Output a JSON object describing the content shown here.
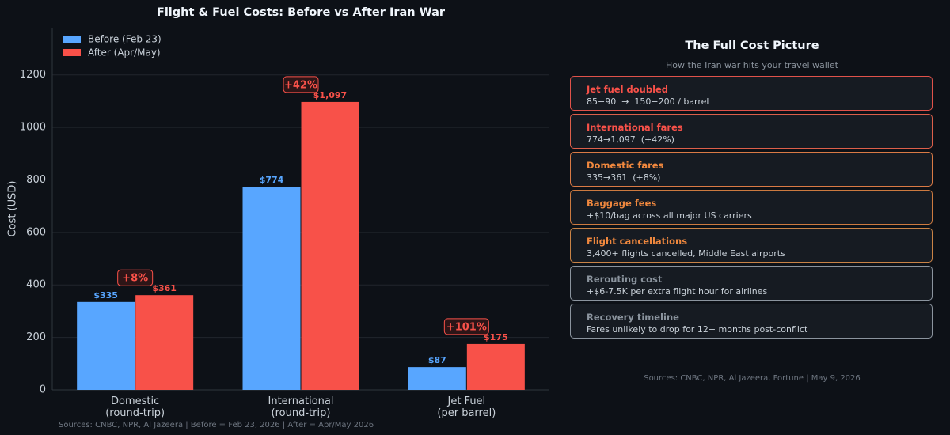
{
  "chart_data": {
    "type": "bar",
    "title": "Flight & Fuel Costs: Before vs After Iran War",
    "y_label": "Cost (USD)",
    "categories": [
      "Domestic\n(round-trip)",
      "International\n(round-trip)",
      "Jet Fuel\n(per barrel)"
    ],
    "series": [
      {
        "name": "Before (Feb 23)",
        "color": "#58a6ff",
        "values": [
          335,
          774,
          87
        ],
        "value_labels": [
          "$335",
          "$774",
          "$87"
        ]
      },
      {
        "name": "After (Apr/May)",
        "color": "#f85149",
        "values": [
          361,
          1097,
          175
        ],
        "value_labels": [
          "$361",
          "$1,097",
          "$175"
        ]
      }
    ],
    "annotations": [
      "+8%",
      "+42%",
      "+101%"
    ],
    "ylim": [
      0,
      1380
    ],
    "yticks": [
      0,
      200,
      400,
      600,
      800,
      1000,
      1200
    ],
    "grid": true,
    "legend": "upper left",
    "source": "Sources: CNBC, NPR, Al Jazeera  |  Before = Feb 23, 2026  |  After = Apr/May 2026"
  },
  "panel": {
    "title": "The Full Cost Picture",
    "subtitle": "How the Iran war hits your travel wallet",
    "cards": [
      {
        "title": "Jet fuel doubled",
        "detail": "85−90  →  150−200 / barrel",
        "color": "#f85149",
        "border": "#e0524a"
      },
      {
        "title": "International fares",
        "detail": "774→1,097  (+42%)",
        "color": "#f85149",
        "border": "#dc5f4a"
      },
      {
        "title": "Domestic fares",
        "detail": "335→361  (+8%)",
        "color": "#f0883e",
        "border": "#d97a45"
      },
      {
        "title": "Baggage fees",
        "detail": "+$10/bag across all major US carriers",
        "color": "#f0883e",
        "border": "#cc7a40"
      },
      {
        "title": "Flight cancellations",
        "detail": "3,400+ flights cancelled, Middle East airports",
        "color": "#f0883e",
        "border": "#c98346"
      },
      {
        "title": "Rerouting cost",
        "detail": "+$6-7.5K per extra flight hour for airlines",
        "color": "#8b949e",
        "border": "#8b949e"
      },
      {
        "title": "Recovery timeline",
        "detail": "Fares unlikely to drop for 12+ months post-conflict",
        "color": "#8b949e",
        "border": "#8b949e"
      }
    ],
    "source": "Sources: CNBC, NPR, Al Jazeera, Fortune  |  May 9, 2026"
  }
}
